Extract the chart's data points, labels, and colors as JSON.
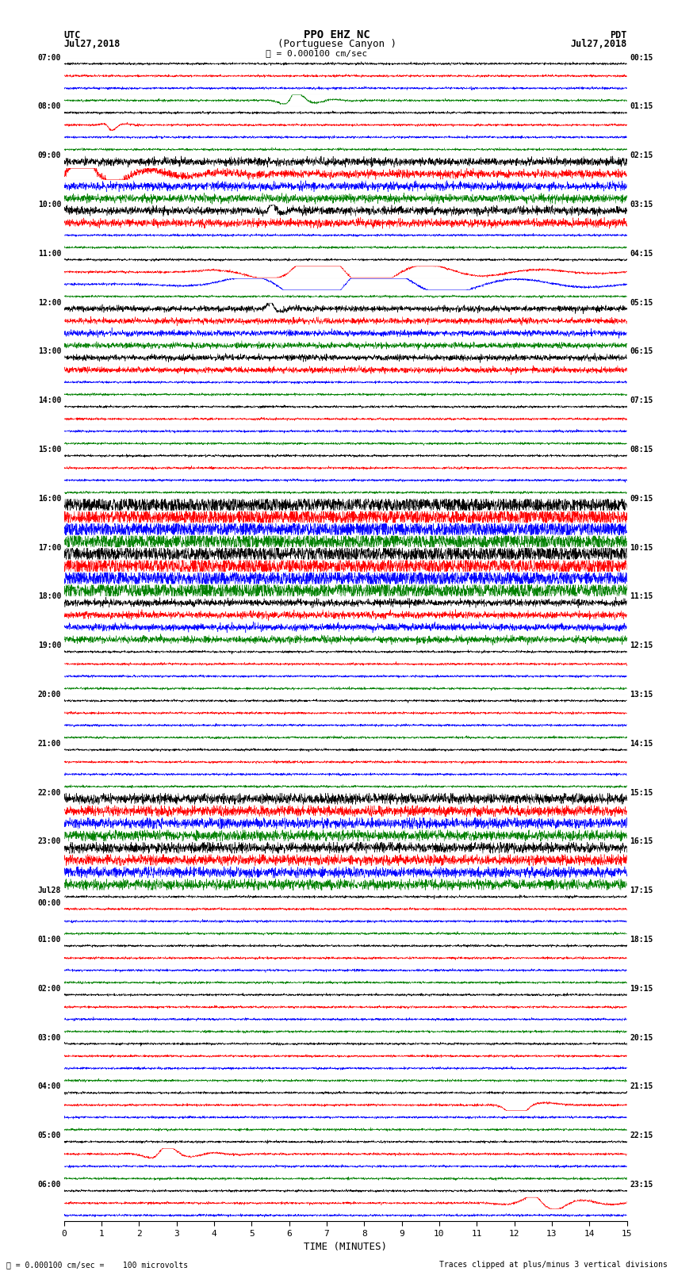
{
  "title_line1": "PPO EHZ NC",
  "title_line2": "(Portuguese Canyon )",
  "scale_label": "= 0.000100 cm/sec",
  "left_header": "UTC",
  "left_date": "Jul27,2018",
  "right_header": "PDT",
  "right_date": "Jul27,2018",
  "xlabel": "TIME (MINUTES)",
  "bottom_left_a": "= 0.000100 cm/sec =    100 microvolts",
  "bottom_right": "Traces clipped at plus/minus 3 vertical divisions",
  "left_times": [
    "07:00",
    "",
    "",
    "",
    "08:00",
    "",
    "",
    "",
    "09:00",
    "",
    "",
    "",
    "10:00",
    "",
    "",
    "",
    "11:00",
    "",
    "",
    "",
    "12:00",
    "",
    "",
    "",
    "13:00",
    "",
    "",
    "",
    "14:00",
    "",
    "",
    "",
    "15:00",
    "",
    "",
    "",
    "16:00",
    "",
    "",
    "",
    "17:00",
    "",
    "",
    "",
    "18:00",
    "",
    "",
    "",
    "19:00",
    "",
    "",
    "",
    "20:00",
    "",
    "",
    "",
    "21:00",
    "",
    "",
    "",
    "22:00",
    "",
    "",
    "",
    "23:00",
    "",
    "",
    "",
    "Jul28\n00:00",
    "",
    "",
    "",
    "01:00",
    "",
    "",
    "",
    "02:00",
    "",
    "",
    "",
    "03:00",
    "",
    "",
    "",
    "04:00",
    "",
    "",
    "",
    "05:00",
    "",
    "",
    "",
    "06:00",
    "",
    ""
  ],
  "right_times": [
    "00:15",
    "",
    "",
    "",
    "01:15",
    "",
    "",
    "",
    "02:15",
    "",
    "",
    "",
    "03:15",
    "",
    "",
    "",
    "04:15",
    "",
    "",
    "",
    "05:15",
    "",
    "",
    "",
    "06:15",
    "",
    "",
    "",
    "07:15",
    "",
    "",
    "",
    "08:15",
    "",
    "",
    "",
    "09:15",
    "",
    "",
    "",
    "10:15",
    "",
    "",
    "",
    "11:15",
    "",
    "",
    "",
    "12:15",
    "",
    "",
    "",
    "13:15",
    "",
    "",
    "",
    "14:15",
    "",
    "",
    "",
    "15:15",
    "",
    "",
    "",
    "16:15",
    "",
    "",
    "",
    "17:15",
    "",
    "",
    "",
    "18:15",
    "",
    "",
    "",
    "19:15",
    "",
    "",
    "",
    "20:15",
    "",
    "",
    "",
    "21:15",
    "",
    "",
    "",
    "22:15",
    "",
    "",
    "",
    "23:15",
    "",
    ""
  ],
  "colors": [
    "black",
    "red",
    "blue",
    "green"
  ],
  "num_rows": 95,
  "time_minutes": 15,
  "bg_color": "white",
  "fig_width": 8.5,
  "fig_height": 16.13,
  "dpi": 100,
  "large_event_rows": [
    36,
    37,
    38,
    39,
    40,
    41,
    42,
    43
  ],
  "medium_event_rows": [
    60,
    61,
    62,
    63,
    64,
    65,
    66,
    67
  ],
  "medium_event2_rows": [
    8,
    9,
    10,
    11,
    12,
    13
  ],
  "spike_rows": [
    20,
    21,
    22,
    23,
    24,
    25
  ],
  "spike2_rows": [
    44,
    45,
    46,
    47
  ]
}
